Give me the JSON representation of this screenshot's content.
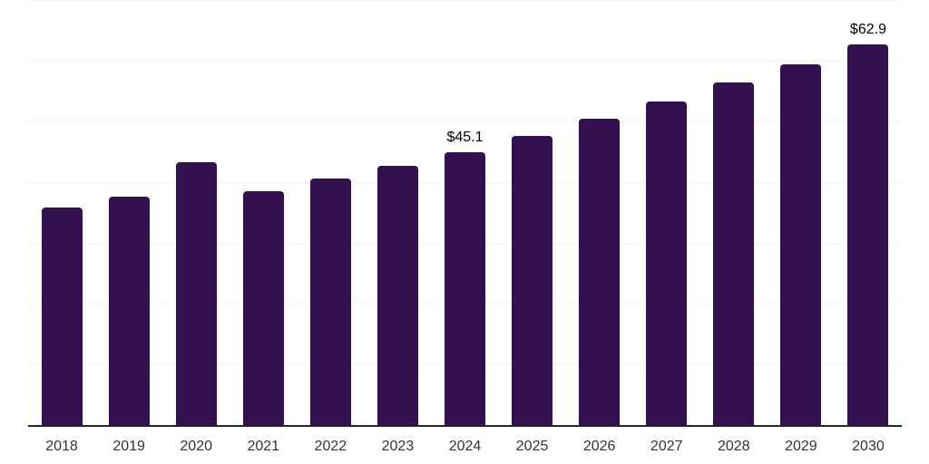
{
  "chart": {
    "background": "#ffffff"
  },
  "chart_data": {
    "type": "bar",
    "title": "",
    "xlabel": "",
    "ylabel": "",
    "categories": [
      "2018",
      "2019",
      "2020",
      "2021",
      "2022",
      "2023",
      "2024",
      "2025",
      "2026",
      "2027",
      "2028",
      "2029",
      "2030"
    ],
    "values": [
      36.0,
      37.7,
      43.5,
      38.7,
      40.8,
      42.8,
      45.1,
      47.8,
      50.6,
      53.5,
      56.6,
      59.6,
      62.9
    ],
    "data_labels": [
      {
        "category": "2024",
        "text": "$45.1"
      },
      {
        "category": "2030",
        "text": "$62.9"
      }
    ],
    "ylim": [
      0,
      70
    ],
    "grid": {
      "horizontal": true,
      "interval": 10,
      "y_tick_labels_visible": false
    },
    "legend": "none",
    "bar_color": "#33104e",
    "gridline_color": "#f3f3f3",
    "axis_line_color": "#26262e",
    "tick_label_color": "#333333",
    "data_label_color": "#000000"
  }
}
